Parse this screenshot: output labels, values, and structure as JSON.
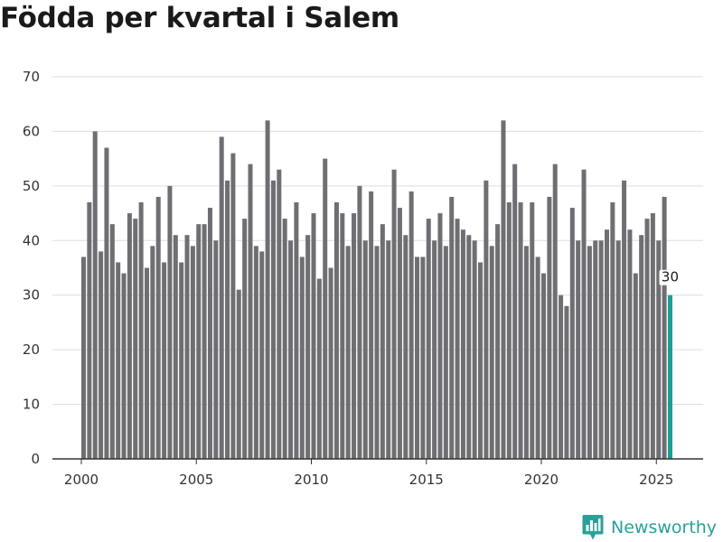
{
  "chart_data": {
    "type": "bar",
    "title": "Födda per kvartal i Salem",
    "xlabel": "",
    "ylabel": "",
    "ylim": [
      0,
      70
    ],
    "yticks": [
      0,
      10,
      20,
      30,
      40,
      50,
      60,
      70
    ],
    "xticks": [
      2000,
      2005,
      2010,
      2015,
      2020,
      2025
    ],
    "x_start": 2000.0,
    "x_step": 0.25,
    "grid": true,
    "values": [
      37,
      47,
      60,
      38,
      57,
      43,
      36,
      34,
      45,
      44,
      47,
      35,
      39,
      48,
      36,
      50,
      41,
      36,
      41,
      39,
      43,
      43,
      46,
      40,
      59,
      51,
      56,
      31,
      44,
      54,
      39,
      38,
      62,
      51,
      53,
      44,
      40,
      47,
      37,
      41,
      45,
      33,
      55,
      35,
      47,
      45,
      39,
      45,
      50,
      40,
      49,
      39,
      43,
      40,
      53,
      46,
      41,
      49,
      37,
      37,
      44,
      40,
      45,
      39,
      48,
      44,
      42,
      41,
      40,
      36,
      51,
      39,
      43,
      62,
      47,
      54,
      47,
      39,
      47,
      37,
      34,
      48,
      54,
      30,
      28,
      46,
      40,
      53,
      39,
      40,
      40,
      42,
      47,
      40,
      51,
      42,
      34,
      41,
      44,
      45,
      40,
      48,
      30
    ],
    "last_value_label": "30",
    "colors": {
      "bar": "#6e6e73",
      "highlight": "#1a9e96",
      "grid": "#dddddd",
      "axis": "#333333"
    }
  },
  "brand": {
    "name": "Newsworthy",
    "icon": "bar-chart-map-pin-icon",
    "color": "#2aa198"
  }
}
